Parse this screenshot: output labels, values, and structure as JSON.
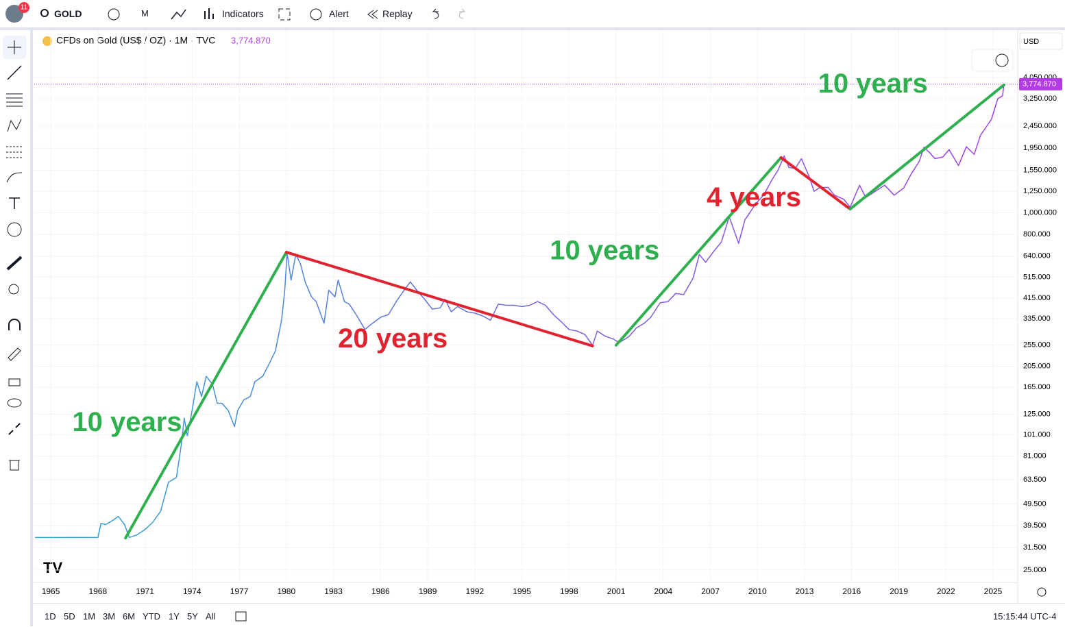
{
  "toolbar": {
    "badge": "11",
    "symbol": "GOLD",
    "interval": "M",
    "indicators": "Indicators",
    "alert": "Alert",
    "replay": "Replay"
  },
  "legend": {
    "title": "CFDs on Gold (US$ / OZ) · 1M · TVC"
  },
  "currency": "USD",
  "ranges": [
    "1D",
    "5D",
    "1M",
    "3M",
    "6M",
    "YTD",
    "1Y",
    "5Y",
    "All"
  ],
  "clock": "15:15:44 UTC-4",
  "chart_data": {
    "type": "line",
    "log_scale": true,
    "grid": true,
    "xlim": [
      1963.95,
      2026.57
    ],
    "ylim": [
      22,
      6550
    ],
    "xticks": [
      1965,
      1968,
      1971,
      1974,
      1977,
      1980,
      1983,
      1986,
      1989,
      1992,
      1995,
      1998,
      2001,
      2004,
      2007,
      2010,
      2013,
      2016,
      2019,
      2022,
      2025
    ],
    "yticks": [
      {
        "value": 4050,
        "label": "4,050.000"
      },
      {
        "value": 3250,
        "label": "3,250.000"
      },
      {
        "value": 2450,
        "label": "2,450.000"
      },
      {
        "value": 1950,
        "label": "1,950.000"
      },
      {
        "value": 1550,
        "label": "1,550.000"
      },
      {
        "value": 1250,
        "label": "1,250.000"
      },
      {
        "value": 1000,
        "label": "1,000.000"
      },
      {
        "value": 800,
        "label": "800.000"
      },
      {
        "value": 640,
        "label": "640.000"
      },
      {
        "value": 515,
        "label": "515.000"
      },
      {
        "value": 415,
        "label": "415.000"
      },
      {
        "value": 335,
        "label": "335.000"
      },
      {
        "value": 255,
        "label": "255.000"
      },
      {
        "value": 205,
        "label": "205.000"
      },
      {
        "value": 165,
        "label": "165.000"
      },
      {
        "value": 125,
        "label": "125.000"
      },
      {
        "value": 101,
        "label": "101.000"
      },
      {
        "value": 81,
        "label": "81.000"
      },
      {
        "value": 63.5,
        "label": "63.500"
      },
      {
        "value": 49.5,
        "label": "49.500"
      },
      {
        "value": 39.5,
        "label": "39.500"
      },
      {
        "value": 31.5,
        "label": "31.500"
      },
      {
        "value": 25,
        "label": "25.000"
      }
    ],
    "x": [
      1964.0,
      1966.0,
      1968.0,
      1968.2,
      1968.5,
      1969.0,
      1969.3,
      1969.7,
      1970.0,
      1970.5,
      1971.0,
      1971.5,
      1972.0,
      1972.5,
      1973.0,
      1973.3,
      1973.5,
      1973.7,
      1974.0,
      1974.3,
      1974.6,
      1974.9,
      1975.3,
      1975.6,
      1975.9,
      1976.3,
      1976.7,
      1976.9,
      1977.3,
      1977.7,
      1978.0,
      1978.5,
      1978.9,
      1979.3,
      1979.7,
      1979.9,
      1980.05,
      1980.3,
      1980.6,
      1980.9,
      1981.2,
      1981.6,
      1981.9,
      1982.4,
      1982.7,
      1983.1,
      1983.3,
      1983.7,
      1984.0,
      1984.5,
      1985.0,
      1985.5,
      1986.0,
      1986.5,
      1987.0,
      1987.5,
      1987.9,
      1988.3,
      1988.8,
      1989.3,
      1989.8,
      1990.1,
      1990.5,
      1990.9,
      1991.5,
      1992.0,
      1992.5,
      1993.0,
      1993.5,
      1994.0,
      1994.5,
      1995.0,
      1995.5,
      1996.0,
      1996.5,
      1997.0,
      1997.5,
      1998.0,
      1998.5,
      1999.0,
      1999.5,
      1999.8,
      2000.3,
      2000.8,
      2001.2,
      2001.8,
      2002.3,
      2002.8,
      2003.2,
      2003.8,
      2004.3,
      2004.8,
      2005.3,
      2005.9,
      2006.3,
      2006.7,
      2007.2,
      2007.7,
      2008.2,
      2008.8,
      2009.2,
      2009.9,
      2010.4,
      2010.9,
      2011.3,
      2011.7,
      2012.0,
      2012.4,
      2012.8,
      2013.3,
      2013.6,
      2014.0,
      2014.5,
      2014.9,
      2015.5,
      2015.9,
      2016.5,
      2016.9,
      2017.5,
      2018.1,
      2018.7,
      2019.3,
      2019.8,
      2020.3,
      2020.6,
      2021.0,
      2021.3,
      2021.8,
      2022.2,
      2022.8,
      2023.3,
      2023.8,
      2024.2,
      2024.6,
      2024.9,
      2025.3,
      2025.6,
      2025.7
    ],
    "series": [
      {
        "colors": [
          "#29a8d8",
          "#6f66e0",
          "#a63cf0"
        ],
        "values": [
          35,
          35,
          35,
          40.5,
          40,
          42,
          43.5,
          40,
          35,
          36,
          38,
          41,
          46,
          62,
          65,
          90,
          120,
          100,
          130,
          175,
          150,
          185,
          170,
          140,
          140,
          130,
          110,
          130,
          145,
          150,
          175,
          185,
          210,
          240,
          330,
          450,
          660,
          500,
          650,
          590,
          490,
          420,
          400,
          320,
          450,
          420,
          500,
          400,
          390,
          345,
          300,
          320,
          340,
          350,
          400,
          450,
          490,
          450,
          410,
          370,
          375,
          410,
          360,
          380,
          360,
          355,
          345,
          330,
          390,
          385,
          385,
          380,
          385,
          400,
          385,
          350,
          325,
          300,
          295,
          285,
          255,
          295,
          280,
          272,
          262,
          278,
          305,
          320,
          340,
          395,
          400,
          435,
          430,
          510,
          650,
          600,
          670,
          740,
          960,
          730,
          930,
          1100,
          1200,
          1400,
          1550,
          1800,
          1600,
          1580,
          1750,
          1450,
          1250,
          1300,
          1300,
          1200,
          1150,
          1060,
          1330,
          1170,
          1250,
          1330,
          1200,
          1290,
          1500,
          1700,
          1970,
          1850,
          1750,
          1780,
          1920,
          1630,
          1980,
          1830,
          2230,
          2450,
          2630,
          3250,
          3350,
          3774.87
        ]
      }
    ],
    "last_price": {
      "value": 3774.87,
      "label": "3,774.870",
      "color": "#b63be8"
    },
    "trendlines": [
      {
        "color": "#2eb04f",
        "x": [
          1969.76,
          1980.0
        ],
        "y": [
          34.8,
          666
        ],
        "label": "10 years"
      },
      {
        "color": "#e0232f",
        "x": [
          1980.0,
          1999.5
        ],
        "y": [
          666,
          253
        ],
        "label": "20 years"
      },
      {
        "color": "#2eb04f",
        "x": [
          2001.0,
          2011.5
        ],
        "y": [
          255,
          1769
        ],
        "label": "10 years"
      },
      {
        "color": "#e0232f",
        "x": [
          2011.5,
          2015.9
        ],
        "y": [
          1769,
          1040
        ],
        "label": "4 years"
      },
      {
        "color": "#2eb04f",
        "x": [
          2015.9,
          2025.69
        ],
        "y": [
          1040,
          3745
        ],
        "label": "10 years"
      }
    ]
  }
}
